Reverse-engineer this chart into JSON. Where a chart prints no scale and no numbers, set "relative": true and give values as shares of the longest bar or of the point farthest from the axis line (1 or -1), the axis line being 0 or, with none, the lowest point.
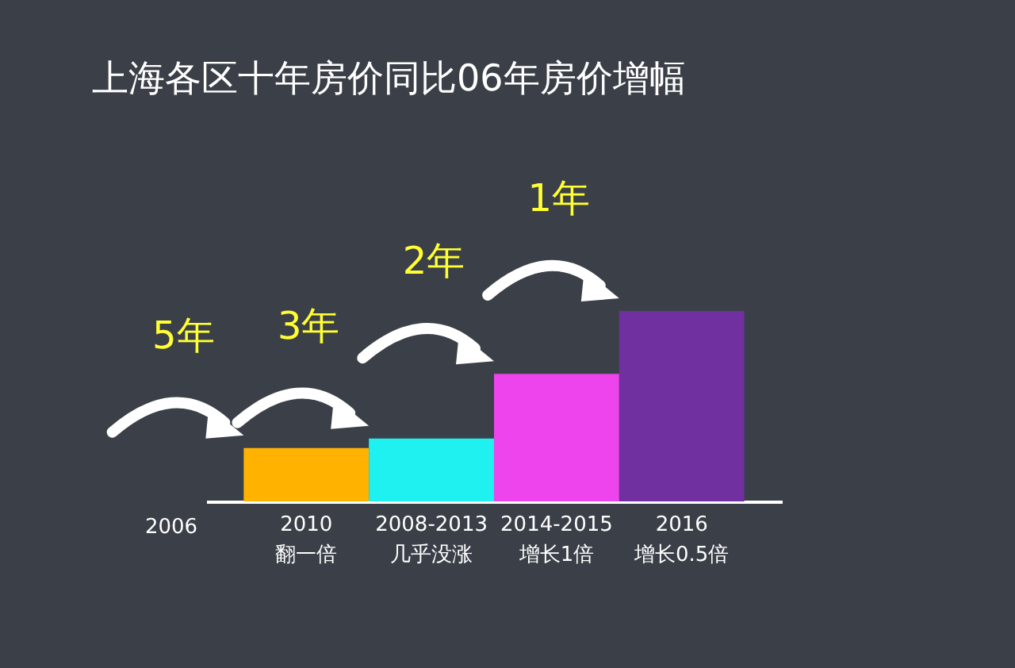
{
  "chart_data": {
    "type": "bar",
    "title": "上海各区十年房价同比06年房价增幅",
    "relative": true,
    "categories": [
      "2010\n翻一倍",
      "2008-2013\n几乎没涨",
      "2014-2015\n增长1倍",
      "2016\n增长0.5倍"
    ],
    "values": [
      0.28,
      0.33,
      0.67,
      1
    ],
    "colors": [
      "#ffb300",
      "#1ff0f0",
      "#ee44ee",
      "#7030a0"
    ],
    "annotations": [
      "2006",
      "5年",
      "3年",
      "2年",
      "1年"
    ],
    "grid": false,
    "legend": false
  }
}
